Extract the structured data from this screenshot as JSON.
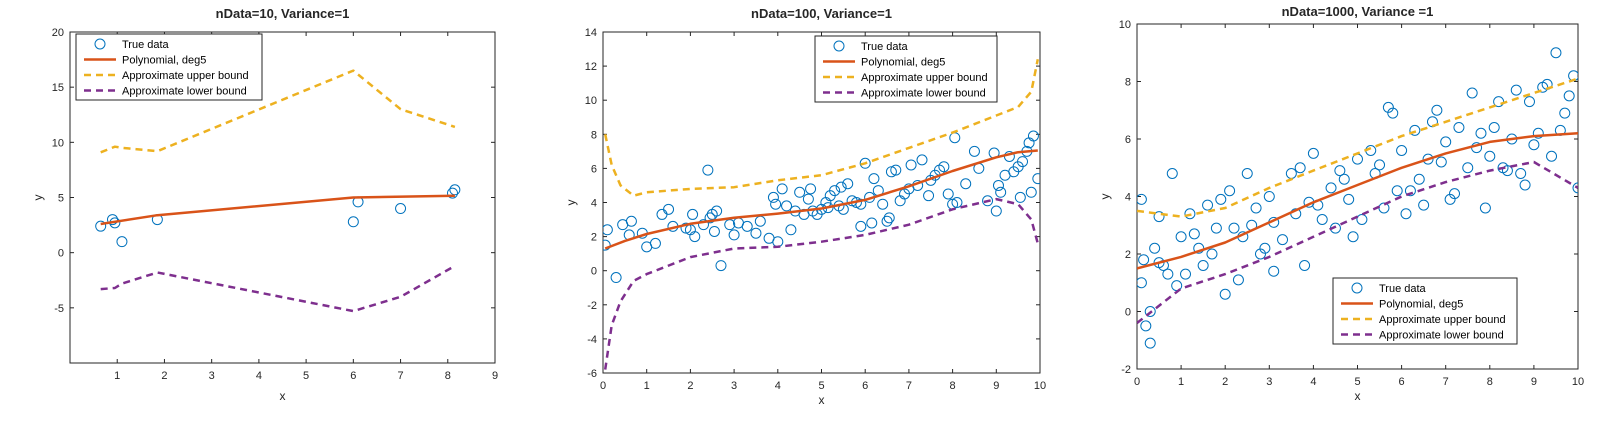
{
  "colors": {
    "true_data": "#0072BD",
    "polynomial": "#D95319",
    "upper": "#EDB120",
    "lower": "#7E2F8E",
    "axes": "#262626"
  },
  "legend_labels": {
    "true_data": "True data",
    "polynomial": "Polynomial, deg5",
    "upper": "Approximate upper bound",
    "lower": "Approximate lower bound"
  },
  "chart_data": [
    {
      "type": "scatter",
      "title": "nData=10, Variance=1",
      "xlabel": "x",
      "ylabel": "y",
      "xlim": [
        0,
        9
      ],
      "ylim": [
        -10,
        20
      ],
      "xticks": [
        1,
        2,
        3,
        4,
        5,
        6,
        7,
        8,
        9
      ],
      "yticks": [
        -5,
        0,
        5,
        10,
        15,
        20
      ],
      "grid": false,
      "legend_position": "top-left",
      "scatter": {
        "name": "True data",
        "x": [
          0.65,
          0.9,
          0.95,
          1.1,
          1.85,
          6.0,
          6.1,
          7.0,
          8.1,
          8.15
        ],
        "y": [
          2.4,
          3.0,
          2.7,
          1.0,
          3.0,
          2.8,
          4.6,
          4.0,
          5.4,
          5.7
        ]
      },
      "lines": [
        {
          "name": "Polynomial, deg5",
          "style": "solid",
          "x": [
            0.65,
            1.85,
            6.0,
            8.15
          ],
          "y": [
            2.6,
            3.4,
            5.0,
            5.15
          ]
        },
        {
          "name": "Approximate upper bound",
          "style": "dashed",
          "x": [
            0.65,
            0.95,
            1.1,
            1.85,
            6.0,
            7.0,
            8.15
          ],
          "y": [
            9.1,
            9.6,
            9.5,
            9.2,
            16.5,
            13.0,
            11.4
          ]
        },
        {
          "name": "Approximate lower bound",
          "style": "dashed",
          "x": [
            0.65,
            0.95,
            1.1,
            1.85,
            6.0,
            7.0,
            8.15
          ],
          "y": [
            -3.3,
            -3.2,
            -2.8,
            -1.8,
            -5.3,
            -4.0,
            -1.2
          ]
        }
      ]
    },
    {
      "type": "scatter",
      "title": "nData=100, Variance=1",
      "xlabel": "x",
      "ylabel": "y",
      "xlim": [
        0,
        10
      ],
      "ylim": [
        -6,
        14
      ],
      "xticks": [
        0,
        1,
        2,
        3,
        4,
        5,
        6,
        7,
        8,
        9,
        10
      ],
      "yticks": [
        -6,
        -4,
        -2,
        0,
        2,
        4,
        6,
        8,
        10,
        12,
        14
      ],
      "grid": false,
      "legend_position": "top-right",
      "scatter": {
        "name": "True data",
        "x": [
          0.05,
          0.1,
          0.3,
          0.45,
          0.6,
          0.65,
          0.9,
          1.0,
          1.2,
          1.35,
          1.5,
          1.6,
          1.9,
          2.0,
          2.1,
          2.3,
          2.4,
          2.45,
          2.5,
          2.55,
          2.6,
          2.7,
          2.9,
          3.0,
          3.1,
          3.3,
          3.5,
          3.6,
          3.8,
          3.9,
          4.0,
          4.1,
          4.2,
          4.3,
          4.4,
          4.5,
          4.6,
          4.7,
          4.8,
          4.9,
          5.0,
          5.1,
          5.15,
          5.2,
          5.3,
          5.4,
          5.45,
          5.5,
          5.6,
          5.7,
          5.8,
          5.9,
          6.0,
          6.1,
          6.15,
          6.2,
          6.3,
          6.4,
          6.5,
          6.6,
          6.7,
          6.8,
          6.9,
          7.0,
          7.05,
          7.2,
          7.3,
          7.45,
          7.5,
          7.6,
          7.7,
          7.8,
          7.9,
          8.0,
          8.05,
          8.1,
          8.3,
          8.5,
          8.6,
          8.8,
          9.0,
          9.05,
          9.1,
          9.2,
          9.3,
          9.4,
          9.5,
          9.55,
          9.6,
          9.7,
          9.75,
          9.85,
          9.95,
          9.8,
          3.95,
          5.9,
          6.55,
          2.05,
          8.95,
          4.75
        ],
        "y": [
          1.5,
          2.4,
          -0.4,
          2.7,
          2.1,
          2.9,
          2.2,
          1.4,
          1.6,
          3.3,
          3.6,
          2.6,
          2.5,
          2.4,
          2.0,
          2.7,
          5.9,
          3.1,
          3.3,
          2.3,
          3.5,
          0.3,
          2.7,
          2.1,
          2.8,
          2.6,
          2.2,
          2.9,
          1.9,
          4.3,
          1.7,
          4.8,
          3.8,
          2.4,
          3.5,
          4.6,
          3.3,
          4.2,
          3.5,
          3.3,
          3.6,
          4.0,
          3.7,
          4.4,
          4.7,
          3.8,
          4.9,
          3.6,
          5.1,
          4.1,
          4.0,
          3.9,
          6.3,
          4.3,
          2.8,
          5.4,
          4.7,
          3.9,
          2.9,
          5.8,
          5.9,
          4.1,
          4.5,
          4.8,
          6.2,
          5.0,
          6.5,
          4.4,
          5.3,
          5.6,
          5.9,
          6.1,
          4.5,
          3.9,
          7.8,
          4.0,
          5.1,
          7.0,
          6.0,
          4.1,
          3.5,
          5.0,
          4.6,
          5.6,
          6.7,
          5.8,
          6.1,
          4.3,
          6.4,
          7.0,
          7.5,
          7.9,
          5.4,
          4.6,
          3.9,
          2.6,
          3.1,
          3.3,
          6.9,
          4.8
        ]
      },
      "lines": [
        {
          "name": "Polynomial, deg5",
          "style": "solid",
          "x": [
            0.05,
            0.5,
            1.0,
            2.0,
            3.0,
            4.0,
            5.0,
            6.0,
            7.0,
            8.0,
            9.0,
            9.5,
            9.95
          ],
          "y": [
            1.3,
            1.75,
            2.15,
            2.75,
            3.1,
            3.35,
            3.65,
            4.15,
            4.95,
            5.85,
            6.65,
            6.95,
            7.05
          ]
        },
        {
          "name": "Approximate upper bound",
          "style": "dashed",
          "x": [
            0.05,
            0.2,
            0.4,
            0.7,
            1.0,
            2.0,
            3.0,
            4.0,
            5.0,
            6.0,
            7.0,
            8.0,
            9.0,
            9.5,
            9.8,
            9.95
          ],
          "y": [
            8.0,
            6.2,
            5.0,
            4.4,
            4.6,
            4.8,
            4.9,
            5.3,
            5.6,
            6.3,
            7.2,
            8.1,
            9.1,
            9.6,
            10.5,
            12.4
          ]
        },
        {
          "name": "Approximate lower bound",
          "style": "dashed",
          "x": [
            0.05,
            0.2,
            0.4,
            0.7,
            1.0,
            2.0,
            3.0,
            4.0,
            5.0,
            6.0,
            7.0,
            8.0,
            9.0,
            9.5,
            9.8,
            9.95
          ],
          "y": [
            -5.8,
            -3.2,
            -1.8,
            -0.6,
            -0.2,
            0.8,
            1.3,
            1.4,
            1.7,
            2.1,
            2.7,
            3.6,
            4.2,
            3.9,
            3.0,
            1.6
          ]
        }
      ]
    },
    {
      "type": "scatter",
      "title": "nData=1000, Variance =1",
      "xlabel": "x",
      "ylabel": "y",
      "xlim": [
        0,
        10
      ],
      "ylim": [
        -2,
        10
      ],
      "xticks": [
        0,
        1,
        2,
        3,
        4,
        5,
        6,
        7,
        8,
        9,
        10
      ],
      "yticks": [
        -2,
        0,
        2,
        4,
        6,
        8,
        10
      ],
      "grid": false,
      "legend_position": "bottom-right",
      "scatter": {
        "name": "True data",
        "x": [
          0.1,
          0.1,
          0.2,
          0.3,
          0.4,
          0.5,
          0.6,
          0.8,
          0.9,
          1.0,
          1.1,
          1.2,
          1.4,
          1.5,
          1.6,
          1.8,
          2.0,
          2.1,
          2.2,
          2.4,
          2.5,
          2.6,
          2.8,
          3.0,
          3.1,
          3.3,
          3.5,
          3.6,
          3.8,
          3.9,
          4.0,
          4.2,
          4.4,
          4.5,
          4.7,
          4.8,
          5.0,
          5.1,
          5.3,
          5.4,
          5.6,
          5.7,
          5.9,
          6.0,
          6.1,
          6.3,
          6.4,
          6.6,
          6.8,
          6.9,
          7.0,
          7.2,
          7.3,
          7.5,
          7.6,
          7.8,
          7.9,
          8.0,
          8.2,
          8.4,
          8.5,
          8.6,
          8.8,
          8.9,
          9.1,
          9.2,
          9.4,
          9.5,
          9.6,
          9.7,
          9.9,
          10.0,
          0.5,
          1.9,
          3.1,
          4.9,
          6.5,
          8.7,
          9.8,
          0.3,
          2.3,
          5.8,
          7.1,
          9.3,
          1.3,
          3.7,
          6.2,
          8.1,
          0.15,
          2.9,
          4.6,
          7.7,
          9.0,
          0.7,
          2.7,
          5.5,
          8.3,
          1.7,
          4.1,
          6.7
        ],
        "y": [
          1.0,
          3.9,
          -0.5,
          -1.1,
          2.2,
          3.3,
          1.6,
          4.8,
          0.9,
          2.6,
          1.3,
          3.4,
          2.2,
          1.6,
          3.7,
          2.9,
          0.6,
          4.2,
          2.9,
          2.6,
          4.8,
          3.0,
          2.0,
          4.0,
          3.1,
          2.5,
          4.8,
          3.4,
          1.6,
          3.8,
          5.5,
          3.2,
          4.3,
          2.9,
          4.6,
          3.9,
          5.3,
          3.2,
          5.6,
          4.8,
          3.6,
          7.1,
          4.2,
          5.6,
          3.4,
          6.3,
          4.6,
          5.3,
          7.0,
          5.2,
          5.9,
          4.1,
          6.4,
          5.0,
          7.6,
          6.2,
          3.6,
          5.4,
          7.3,
          4.9,
          6.0,
          7.7,
          4.4,
          7.3,
          6.2,
          7.8,
          5.4,
          9.0,
          6.3,
          6.9,
          8.2,
          4.3,
          1.7,
          3.9,
          1.4,
          2.6,
          3.7,
          4.8,
          7.5,
          0.0,
          1.1,
          6.9,
          3.9,
          7.9,
          2.7,
          5.0,
          4.2,
          6.4,
          1.8,
          2.2,
          4.9,
          5.7,
          5.8,
          1.3,
          3.6,
          5.1,
          5.0,
          2.0,
          3.7,
          6.6
        ]
      },
      "lines": [
        {
          "name": "Polynomial, deg5",
          "style": "solid",
          "x": [
            0,
            1,
            2,
            3,
            4,
            5,
            6,
            7,
            8,
            9,
            10
          ],
          "y": [
            1.5,
            1.9,
            2.4,
            3.1,
            3.8,
            4.4,
            5.0,
            5.5,
            5.9,
            6.1,
            6.2
          ]
        },
        {
          "name": "Approximate upper bound",
          "style": "dashed",
          "x": [
            0,
            1,
            2,
            3,
            4,
            5,
            6,
            7,
            8,
            9,
            10
          ],
          "y": [
            3.5,
            3.3,
            3.6,
            4.3,
            4.9,
            5.5,
            6.1,
            6.6,
            7.1,
            7.6,
            8.1
          ]
        },
        {
          "name": "Approximate lower bound",
          "style": "dashed",
          "x": [
            0,
            1,
            2,
            3,
            4,
            5,
            6,
            7,
            8,
            9,
            10
          ],
          "y": [
            -0.4,
            0.8,
            1.3,
            1.9,
            2.6,
            3.3,
            4.0,
            4.5,
            4.9,
            5.2,
            4.3
          ]
        }
      ]
    }
  ]
}
